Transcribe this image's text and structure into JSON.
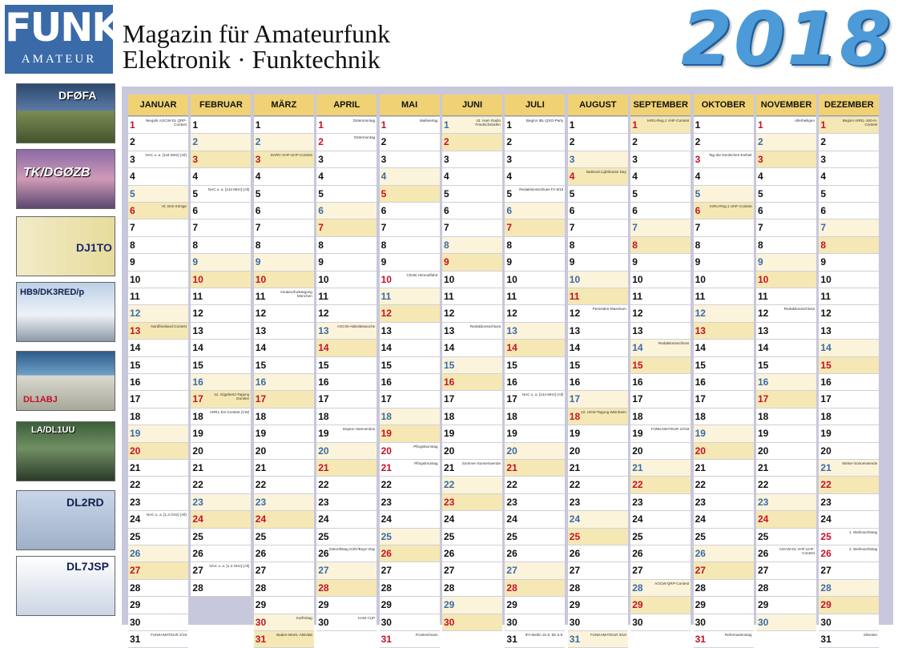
{
  "brand": {
    "logo_main": "FUNK",
    "logo_sub": "AMATEUR"
  },
  "header": {
    "line1": "Magazin für Amateurfunk",
    "line2": "Elektronik · Funktechnik",
    "year": "2018"
  },
  "cards": [
    {
      "callsign": "DFØFA"
    },
    {
      "callsign": "TK/DGØZB"
    },
    {
      "callsign": "DJ1TO"
    },
    {
      "callsign": "HB9/DK3RED/p"
    },
    {
      "callsign": "DL1ABJ"
    },
    {
      "callsign": "LA/DL1UU"
    },
    {
      "callsign": "DL2RD"
    },
    {
      "callsign": "DL7JSP"
    }
  ],
  "months": [
    {
      "name": "JANUAR",
      "start": 1,
      "days": 31
    },
    {
      "name": "FEBRUAR",
      "start": 4,
      "days": 28
    },
    {
      "name": "MÄRZ",
      "start": 4,
      "days": 31
    },
    {
      "name": "APRIL",
      "start": 0,
      "days": 30
    },
    {
      "name": "MAI",
      "start": 2,
      "days": 31
    },
    {
      "name": "JUNI",
      "start": 5,
      "days": 30
    },
    {
      "name": "JULI",
      "start": 0,
      "days": 31
    },
    {
      "name": "AUGUST",
      "start": 3,
      "days": 31
    },
    {
      "name": "SEPTEMBER",
      "start": 6,
      "days": 30
    },
    {
      "name": "OKTOBER",
      "start": 1,
      "days": 31
    },
    {
      "name": "NOVEMBER",
      "start": 4,
      "days": 30
    },
    {
      "name": "DEZEMBER",
      "start": 6,
      "days": 31
    }
  ],
  "holidays": {
    "JANUAR": [
      1
    ],
    "MÄRZ": [
      30
    ],
    "APRIL": [
      1,
      2
    ],
    "MAI": [
      1,
      10,
      20,
      21,
      31
    ],
    "OKTOBER": [
      3,
      31
    ],
    "NOVEMBER": [
      1
    ],
    "DEZEMBER": [
      25,
      26
    ]
  },
  "notes": {
    "JANUAR": {
      "1": "Neujahr AGCW-DL QRP-Contest",
      "3": "NAC u. a. [144 MHz] (All)",
      "6": "Hl. Drei Könige",
      "13": "Nordfriesland-Contest",
      "24": "NAC u. a. [1,3 GHz] (All)",
      "31": "FUNKAMATEUR 2/18"
    },
    "FEBRUAR": {
      "5": "NAC u. a. [144 MHz] (All)",
      "17": "41. Gigahertz-Tagung Dorsten",
      "18": "ARRL-DX-Contest (CW)",
      "27": "NAC u. a. [1,3 GHz] (All)"
    },
    "MÄRZ": {
      "3": "DARC-VHF-UHF-Contest",
      "11": "Amateurfunktagung München",
      "30": "Karfreitag",
      "31": "Baden-Württ.-Aktivität"
    },
    "APRIL": {
      "1": "Ostersonntag",
      "2": "Ostermontag",
      "13": "AGCW-Aktivitätswoche",
      "19": "Dayton Hamvention",
      "26": "Zukunftstag Girls'/Boys' Day",
      "30": "HAM CUP"
    },
    "MAI": {
      "1": "Maifeiertag",
      "10": "Christi Himmelfahrt",
      "20": "Pfingstsonntag",
      "21": "Pfingstmontag",
      "31": "Fronleichnam"
    },
    "JUNI": {
      "1": "43. Ham Radio Friedrichshafen",
      "13": "Redaktionsschluss",
      "21": "Sommer-Sonnenwende"
    },
    "JULI": {
      "1": "Beginn IBL-QSO-Party",
      "5": "Redaktionsschluss FA 8/18",
      "17": "NAC u. a. [144 MHz] (All)",
      "31": "IFA-Berlin 31.8. bis 5.9."
    },
    "AUGUST": {
      "4": "National Lighthouse Day",
      "12": "Perseiden-Maximum",
      "18": "22. UKW-Tagung Weinheim",
      "31": "FUNKAMATEUR 9/18"
    },
    "SEPTEMBER": {
      "1": "IARU-Reg.1 VHF-Contest",
      "14": "Redaktionsschluss",
      "19": "FUNKAMATEUR 10/18",
      "28": "AGCW-QRP-Contest"
    },
    "OKTOBER": {
      "3": "Tag der Deutschen Einheit",
      "6": "IARU-Reg.1 UHF-Contest",
      "31": "Reformationstag"
    },
    "NOVEMBER": {
      "1": "Allerheiligen",
      "12": "Redaktionsschluss",
      "26": "AGCW-DL VHF-UHF-Contest"
    },
    "DEZEMBER": {
      "1": "Beginn ARRL-160-m-Contest",
      "21": "Winter-Sonnenwende",
      "25": "1. Weihnachtstag",
      "26": "2. Weihnachtstag",
      "31": "Silvester"
    }
  }
}
